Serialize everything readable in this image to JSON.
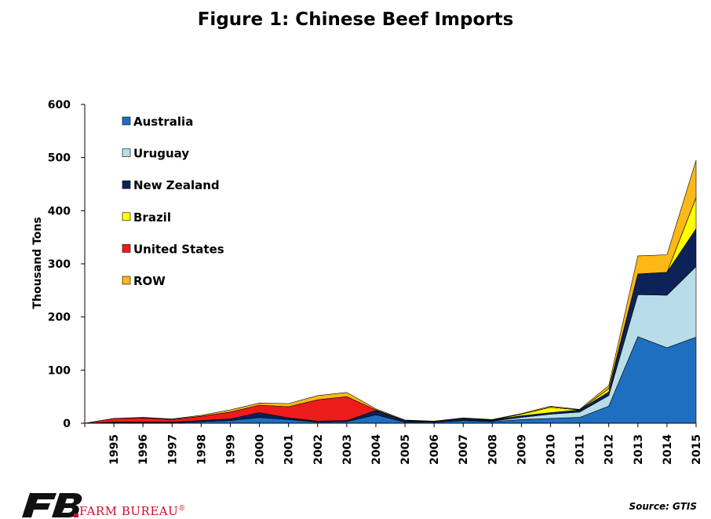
{
  "chart_data": {
    "type": "area",
    "stacked": true,
    "title": "Figure 1: Chinese Beef Imports",
    "ylabel": "Thousand Tons",
    "xlabel": "",
    "ylim": [
      0,
      600
    ],
    "yticks": [
      0,
      100,
      200,
      300,
      400,
      500,
      600
    ],
    "x": [
      "1994",
      "1995",
      "1996",
      "1997",
      "1998",
      "1999",
      "2000",
      "2001",
      "2002",
      "2003",
      "2004",
      "2005",
      "2006",
      "2007",
      "2008",
      "2009",
      "2010",
      "2011",
      "2012",
      "2013",
      "2014",
      "2015"
    ],
    "x_tick_labels": [
      "1995",
      "1996",
      "1997",
      "1998",
      "1999",
      "2000",
      "2001",
      "2002",
      "2003",
      "2004",
      "2005",
      "2006",
      "2007",
      "2008",
      "2009",
      "2010",
      "2011",
      "2012",
      "2013",
      "2014",
      "2015"
    ],
    "series": [
      {
        "name": "Australia",
        "color": "#1f6fc0",
        "values": [
          0,
          1,
          1,
          1,
          3,
          5,
          11,
          7,
          2,
          3,
          16,
          2,
          2,
          5,
          3,
          7,
          9,
          11,
          32,
          163,
          142,
          162
        ]
      },
      {
        "name": "Uruguay",
        "color": "#b8dde8",
        "values": [
          0,
          0,
          0,
          0,
          0,
          0,
          0,
          0,
          0,
          0,
          0,
          0,
          0,
          0,
          1,
          4,
          8,
          10,
          20,
          79,
          99,
          133
        ]
      },
      {
        "name": "New Zealand",
        "color": "#0d2259",
        "values": [
          0,
          1,
          1,
          1,
          2,
          3,
          9,
          3,
          2,
          2,
          8,
          3,
          1,
          4,
          2,
          3,
          3,
          4,
          7,
          39,
          43,
          71
        ]
      },
      {
        "name": "Brazil",
        "color": "#ffff00",
        "values": [
          0,
          0,
          0,
          0,
          0,
          0,
          0,
          0,
          0,
          0,
          0,
          0,
          0,
          0,
          0,
          3,
          10,
          0,
          6,
          0,
          0,
          59
        ]
      },
      {
        "name": "United States",
        "color": "#ed1c1c",
        "values": [
          0,
          7,
          8,
          5,
          8,
          13,
          14,
          21,
          40,
          45,
          1,
          0,
          0,
          0,
          0,
          0,
          0,
          0,
          0,
          0,
          0,
          0
        ]
      },
      {
        "name": "ROW",
        "color": "#fbb817",
        "values": [
          0,
          0,
          1,
          1,
          2,
          4,
          4,
          6,
          8,
          8,
          2,
          1,
          1,
          1,
          1,
          1,
          2,
          1,
          6,
          34,
          33,
          70
        ]
      }
    ],
    "legend_position": "top-left",
    "grid": false
  },
  "source": "Source: GTIS",
  "logo": {
    "text": "FARM BUREAU",
    "mark": "®",
    "color": "#c8102e"
  }
}
